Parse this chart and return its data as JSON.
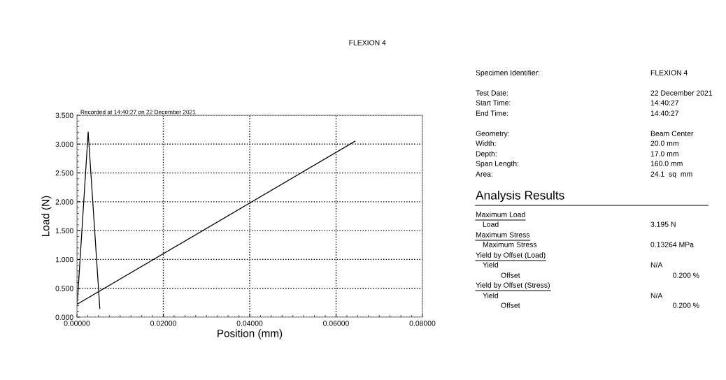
{
  "chart_data": [
    {
      "type": "line",
      "title": "FLEXION 4",
      "xlabel": "Position (mm)",
      "ylabel": "Load (N)",
      "annotations": [
        "Recorded at 14:40:27 on 22 December 2021"
      ],
      "series": [
        {
          "color": "#000000",
          "x": [
            0.0644,
            0.0,
            0.0002,
            0.0026,
            0.0053
          ],
          "values": [
            3.05,
            0.22,
            0.38,
            3.21,
            0.15
          ]
        }
      ],
      "xlim": [
        0,
        0.08
      ],
      "xticks": [
        {
          "value": 0,
          "label": "0.00000"
        },
        {
          "value": 0.02,
          "label": "0.02000"
        },
        {
          "value": 0.04,
          "label": "0.04000"
        },
        {
          "value": 0.06,
          "label": "0.06000"
        },
        {
          "value": 0.08,
          "label": "0.08000"
        }
      ],
      "ylim": [
        0,
        3.5
      ],
      "yticks": [
        {
          "value": 0,
          "label": "0.000"
        },
        {
          "value": 0.5,
          "label": "0.500"
        },
        {
          "value": 1,
          "label": "1.000"
        },
        {
          "value": 1.5,
          "label": "1.500"
        },
        {
          "value": 2,
          "label": "2.000"
        },
        {
          "value": 2.5,
          "label": "2.500"
        },
        {
          "value": 3,
          "label": "3.000"
        },
        {
          "value": 3.5,
          "label": "3.500"
        }
      ],
      "grid": true,
      "line_style": "solid",
      "marker": "none",
      "legend": false
    },
    {
      "type": "other",
      "annotations": [
        "Specimen Identifier:",
        "FLEXION 4",
        "Test Date:",
        "22 December 2021",
        "Start Time:",
        "14:40:27",
        "End Time:",
        "14:40:27",
        "Geometry:",
        "Beam Center",
        "Width:",
        "20.0 mm",
        "Depth:",
        "17.0 mm",
        "Span Length:",
        "160.0 mm",
        "Area:",
        "24.1  sq  mm",
        "Analysis Results",
        "Maximum Load",
        "Load",
        "3.195 N",
        "Maximum Stress",
        "Maximum Stress",
        "0.13264 MPa",
        "Yield by Offset (Load)",
        "Yield",
        "N/A",
        "Offset",
        "0.200 %",
        "Yield by Offset (Stress)",
        "Yield",
        "N/A",
        "Offset",
        "0.200 %"
      ]
    }
  ]
}
